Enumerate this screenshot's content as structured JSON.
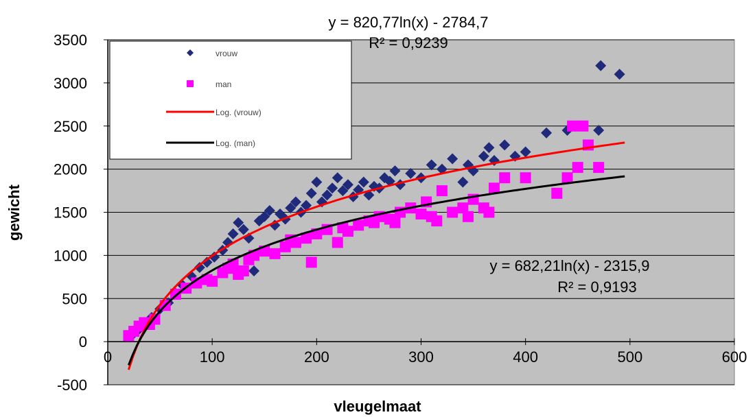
{
  "chart_data": {
    "type": "scatter",
    "title": "",
    "xlabel": "vleugelmaat",
    "ylabel": "gewicht",
    "xlim": [
      0,
      600
    ],
    "ylim": [
      -500,
      3500
    ],
    "x_ticks": [
      0,
      100,
      200,
      300,
      400,
      500,
      600
    ],
    "y_ticks": [
      -500,
      0,
      500,
      1000,
      1500,
      2000,
      2500,
      3000,
      3500
    ],
    "x_tick_labels": [
      "0",
      "100",
      "200",
      "300",
      "400",
      "500",
      "600"
    ],
    "y_tick_labels": [
      "-500",
      "0",
      "500",
      "1000",
      "1500",
      "2000",
      "2500",
      "3000",
      "3500"
    ],
    "grid": "horizontal",
    "plot_background": "#c0c0c0",
    "legend_position": "top-left",
    "series": [
      {
        "name": "vrouw",
        "color": "#1f2a7a",
        "marker": "diamond",
        "points": [
          [
            22,
            60
          ],
          [
            28,
            120
          ],
          [
            35,
            200
          ],
          [
            42,
            280
          ],
          [
            50,
            380
          ],
          [
            58,
            450
          ],
          [
            65,
            560
          ],
          [
            72,
            650
          ],
          [
            80,
            760
          ],
          [
            88,
            860
          ],
          [
            95,
            920
          ],
          [
            102,
            980
          ],
          [
            110,
            1060
          ],
          [
            115,
            1150
          ],
          [
            120,
            1250
          ],
          [
            125,
            1380
          ],
          [
            130,
            1300
          ],
          [
            135,
            1200
          ],
          [
            140,
            820
          ],
          [
            145,
            1400
          ],
          [
            150,
            1450
          ],
          [
            155,
            1520
          ],
          [
            160,
            1350
          ],
          [
            165,
            1480
          ],
          [
            170,
            1420
          ],
          [
            175,
            1550
          ],
          [
            180,
            1620
          ],
          [
            185,
            1500
          ],
          [
            190,
            1580
          ],
          [
            195,
            1720
          ],
          [
            200,
            1850
          ],
          [
            205,
            1620
          ],
          [
            210,
            1700
          ],
          [
            215,
            1780
          ],
          [
            220,
            1900
          ],
          [
            225,
            1750
          ],
          [
            230,
            1820
          ],
          [
            235,
            1680
          ],
          [
            240,
            1760
          ],
          [
            245,
            1850
          ],
          [
            250,
            1700
          ],
          [
            255,
            1800
          ],
          [
            260,
            1780
          ],
          [
            265,
            1900
          ],
          [
            270,
            1860
          ],
          [
            275,
            1980
          ],
          [
            280,
            1820
          ],
          [
            290,
            1950
          ],
          [
            300,
            1900
          ],
          [
            310,
            2050
          ],
          [
            320,
            2000
          ],
          [
            330,
            2120
          ],
          [
            340,
            1850
          ],
          [
            345,
            2050
          ],
          [
            350,
            1980
          ],
          [
            360,
            2150
          ],
          [
            365,
            2250
          ],
          [
            370,
            2100
          ],
          [
            380,
            2280
          ],
          [
            390,
            2150
          ],
          [
            400,
            2200
          ],
          [
            420,
            2420
          ],
          [
            440,
            2450
          ],
          [
            470,
            2450
          ],
          [
            472,
            3200
          ],
          [
            490,
            3100
          ]
        ]
      },
      {
        "name": "man",
        "color": "#ff00ff",
        "marker": "square",
        "points": [
          [
            20,
            70
          ],
          [
            25,
            120
          ],
          [
            30,
            180
          ],
          [
            35,
            220
          ],
          [
            40,
            200
          ],
          [
            45,
            260
          ],
          [
            55,
            420
          ],
          [
            65,
            550
          ],
          [
            75,
            620
          ],
          [
            85,
            680
          ],
          [
            95,
            720
          ],
          [
            100,
            700
          ],
          [
            110,
            800
          ],
          [
            115,
            850
          ],
          [
            120,
            900
          ],
          [
            125,
            780
          ],
          [
            130,
            820
          ],
          [
            135,
            950
          ],
          [
            140,
            1000
          ],
          [
            150,
            1050
          ],
          [
            160,
            1020
          ],
          [
            170,
            1100
          ],
          [
            175,
            1180
          ],
          [
            180,
            1150
          ],
          [
            190,
            1200
          ],
          [
            195,
            920
          ],
          [
            200,
            1250
          ],
          [
            210,
            1300
          ],
          [
            220,
            1150
          ],
          [
            225,
            1320
          ],
          [
            230,
            1280
          ],
          [
            240,
            1350
          ],
          [
            250,
            1400
          ],
          [
            255,
            1380
          ],
          [
            260,
            1450
          ],
          [
            270,
            1420
          ],
          [
            275,
            1380
          ],
          [
            280,
            1500
          ],
          [
            290,
            1550
          ],
          [
            300,
            1480
          ],
          [
            305,
            1620
          ],
          [
            310,
            1450
          ],
          [
            315,
            1400
          ],
          [
            320,
            1750
          ],
          [
            330,
            1500
          ],
          [
            340,
            1550
          ],
          [
            345,
            1450
          ],
          [
            350,
            1650
          ],
          [
            360,
            1550
          ],
          [
            365,
            1500
          ],
          [
            370,
            1780
          ],
          [
            380,
            1900
          ],
          [
            400,
            1900
          ],
          [
            430,
            1720
          ],
          [
            440,
            1900
          ],
          [
            445,
            2500
          ],
          [
            450,
            2020
          ],
          [
            455,
            2500
          ],
          [
            460,
            2280
          ],
          [
            470,
            2020
          ]
        ]
      }
    ],
    "trendlines": [
      {
        "name": "Log. (vrouw)",
        "type": "log",
        "color": "#ff0000",
        "a": 820.77,
        "b": -2784.7,
        "x_range": [
          20,
          495
        ],
        "equation": "y = 820,77ln(x) - 2784,7",
        "r2": "R² = 0,9239"
      },
      {
        "name": "Log. (man)",
        "type": "log",
        "color": "#000000",
        "a": 682.21,
        "b": -2315.9,
        "x_range": [
          20,
          495
        ],
        "equation": "y = 682,21ln(x) - 2315,9",
        "r2": "R² = 0,9193"
      }
    ]
  },
  "legend": {
    "items": [
      {
        "label": "vrouw",
        "marker": "diamond",
        "color": "#1f2a7a"
      },
      {
        "label": "man",
        "marker": "square",
        "color": "#ff00ff"
      },
      {
        "label": "Log. (vrouw)",
        "marker": "line",
        "color": "#ff0000"
      },
      {
        "label": "Log. (man)",
        "marker": "line",
        "color": "#000000"
      }
    ]
  }
}
